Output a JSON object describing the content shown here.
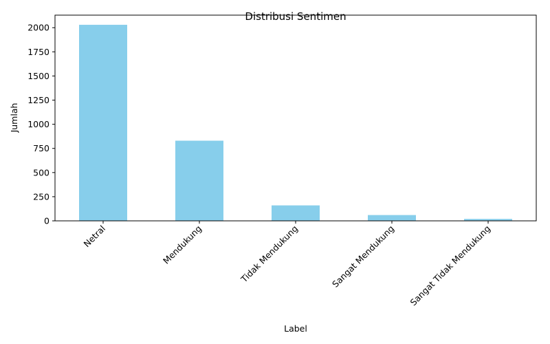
{
  "chart_data": {
    "type": "bar",
    "title": "Distribusi Sentimen",
    "xlabel": "Label",
    "ylabel": "Jumlah",
    "categories": [
      "Netral",
      "Mendukung",
      "Tidak Mendukung",
      "Sangat Mendukung",
      "Sangat Tidak Mendukung"
    ],
    "values": [
      2030,
      830,
      160,
      60,
      20
    ],
    "ylim": [
      0,
      2130
    ],
    "yticks": [
      0,
      250,
      500,
      750,
      1000,
      1250,
      1500,
      1750,
      2000
    ],
    "grid": false,
    "legend": "none",
    "bar_color": "#87CEEB"
  }
}
